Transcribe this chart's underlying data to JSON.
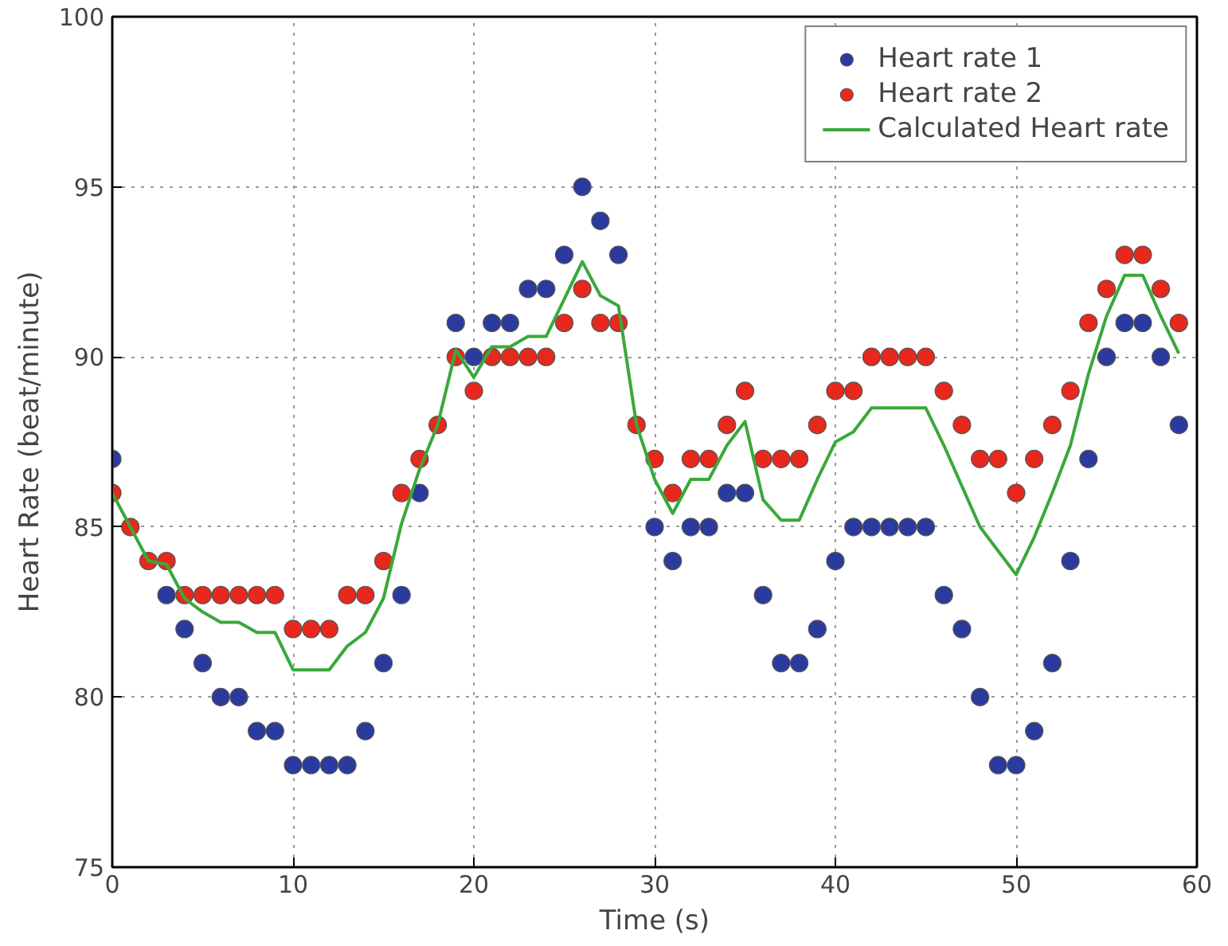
{
  "chart_data": {
    "type": "scatter",
    "xlabel": "Time (s)",
    "ylabel": "Heart Rate (beat/minute)",
    "x": [
      0,
      1,
      2,
      3,
      4,
      5,
      6,
      7,
      8,
      9,
      10,
      11,
      12,
      13,
      14,
      15,
      16,
      17,
      18,
      19,
      20,
      21,
      22,
      23,
      24,
      25,
      26,
      27,
      28,
      29,
      30,
      31,
      32,
      33,
      34,
      35,
      36,
      37,
      38,
      39,
      40,
      41,
      42,
      43,
      44,
      45,
      46,
      47,
      48,
      49,
      50,
      51,
      52,
      53,
      54,
      55,
      56,
      57,
      58,
      59
    ],
    "series": [
      {
        "name": "Heart rate 1",
        "marker": "circle",
        "color": "#2b3a9e",
        "values": [
          87,
          null,
          null,
          83,
          82,
          81,
          80,
          80,
          79,
          79,
          78,
          78,
          78,
          78,
          79,
          81,
          83,
          86,
          null,
          91,
          90,
          91,
          91,
          92,
          92,
          93,
          95,
          94,
          93,
          null,
          85,
          84,
          85,
          85,
          86,
          86,
          83,
          81,
          81,
          82,
          84,
          85,
          85,
          85,
          85,
          85,
          83,
          82,
          80,
          78,
          78,
          79,
          81,
          84,
          87,
          90,
          91,
          91,
          90,
          88
        ]
      },
      {
        "name": "Heart rate 2",
        "marker": "circle",
        "color": "#e8281c",
        "values": [
          86,
          85,
          84,
          84,
          83,
          83,
          83,
          83,
          83,
          83,
          82,
          82,
          82,
          83,
          83,
          84,
          86,
          87,
          88,
          90,
          89,
          90,
          90,
          90,
          90,
          91,
          92,
          91,
          91,
          88,
          87,
          86,
          87,
          87,
          88,
          89,
          87,
          87,
          87,
          88,
          89,
          89,
          90,
          90,
          90,
          90,
          89,
          88,
          87,
          87,
          86,
          87,
          88,
          89,
          91,
          92,
          93,
          93,
          92,
          91
        ]
      },
      {
        "name": "Calculated Heart rate",
        "type": "line",
        "line_style": "solid",
        "color": "#3aa83a",
        "values": [
          86.0,
          85.0,
          84.0,
          83.9,
          82.9,
          82.5,
          82.2,
          82.2,
          81.9,
          81.9,
          80.8,
          80.8,
          80.8,
          81.5,
          81.9,
          82.9,
          85.1,
          86.7,
          88.0,
          90.2,
          89.4,
          90.3,
          90.3,
          90.6,
          90.6,
          91.7,
          92.8,
          91.8,
          91.5,
          88.0,
          86.4,
          85.4,
          86.4,
          86.4,
          87.4,
          88.1,
          85.8,
          85.2,
          85.2,
          86.4,
          87.5,
          87.8,
          88.5,
          88.5,
          88.5,
          88.5,
          87.4,
          86.2,
          85.0,
          84.3,
          83.6,
          84.7,
          86.0,
          87.4,
          89.5,
          91.2,
          92.4,
          92.4,
          91.2,
          90.1
        ]
      }
    ],
    "xlim": [
      0,
      60
    ],
    "xticks": [
      0,
      10,
      20,
      30,
      40,
      50,
      60
    ],
    "ylim": [
      75,
      100
    ],
    "yticks": [
      75,
      80,
      85,
      90,
      95,
      100
    ],
    "grid": true,
    "legend": "top right"
  }
}
